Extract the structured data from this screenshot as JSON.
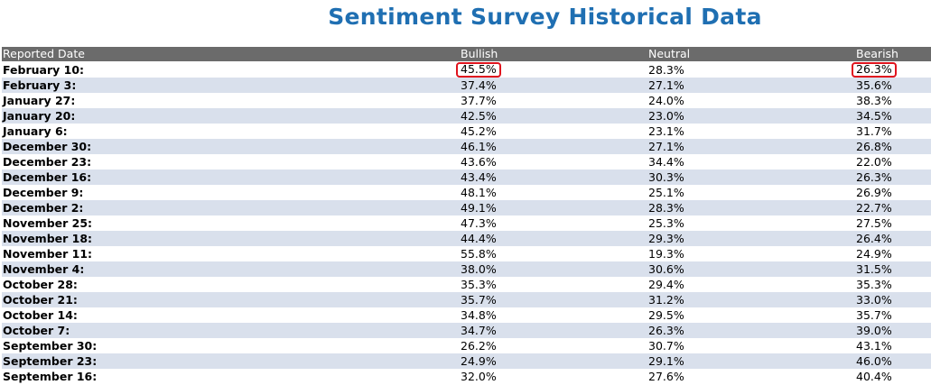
{
  "title": "Sentiment Survey Historical Data",
  "headers": [
    "Reported Date",
    "Bullish",
    "Neutral",
    "Bearish"
  ],
  "highlight_color": "#e0141e",
  "header_color": "#6b6b6b",
  "stripe_color": "#d9e0ec",
  "title_color": "#1f6fb2",
  "rows": [
    {
      "date": "February 10:",
      "bullish": "45.5%",
      "neutral": "28.3%",
      "bearish": "26.3%",
      "highlight_bullish": true,
      "highlight_bearish": true
    },
    {
      "date": "February 3:",
      "bullish": "37.4%",
      "neutral": "27.1%",
      "bearish": "35.6%"
    },
    {
      "date": "January 27:",
      "bullish": "37.7%",
      "neutral": "24.0%",
      "bearish": "38.3%"
    },
    {
      "date": "January 20:",
      "bullish": "42.5%",
      "neutral": "23.0%",
      "bearish": "34.5%"
    },
    {
      "date": "January 6:",
      "bullish": "45.2%",
      "neutral": "23.1%",
      "bearish": "31.7%"
    },
    {
      "date": "December 30:",
      "bullish": "46.1%",
      "neutral": "27.1%",
      "bearish": "26.8%"
    },
    {
      "date": "December 23:",
      "bullish": "43.6%",
      "neutral": "34.4%",
      "bearish": "22.0%"
    },
    {
      "date": "December 16:",
      "bullish": "43.4%",
      "neutral": "30.3%",
      "bearish": "26.3%"
    },
    {
      "date": "December 9:",
      "bullish": "48.1%",
      "neutral": "25.1%",
      "bearish": "26.9%"
    },
    {
      "date": "December 2:",
      "bullish": "49.1%",
      "neutral": "28.3%",
      "bearish": "22.7%"
    },
    {
      "date": "November 25:",
      "bullish": "47.3%",
      "neutral": "25.3%",
      "bearish": "27.5%"
    },
    {
      "date": "November 18:",
      "bullish": "44.4%",
      "neutral": "29.3%",
      "bearish": "26.4%"
    },
    {
      "date": "November 11:",
      "bullish": "55.8%",
      "neutral": "19.3%",
      "bearish": "24.9%"
    },
    {
      "date": "November 4:",
      "bullish": "38.0%",
      "neutral": "30.6%",
      "bearish": "31.5%"
    },
    {
      "date": "October 28:",
      "bullish": "35.3%",
      "neutral": "29.4%",
      "bearish": "35.3%"
    },
    {
      "date": "October 21:",
      "bullish": "35.7%",
      "neutral": "31.2%",
      "bearish": "33.0%"
    },
    {
      "date": "October 14:",
      "bullish": "34.8%",
      "neutral": "29.5%",
      "bearish": "35.7%"
    },
    {
      "date": "October 7:",
      "bullish": "34.7%",
      "neutral": "26.3%",
      "bearish": "39.0%"
    },
    {
      "date": "September 30:",
      "bullish": "26.2%",
      "neutral": "30.7%",
      "bearish": "43.1%"
    },
    {
      "date": "September 23:",
      "bullish": "24.9%",
      "neutral": "29.1%",
      "bearish": "46.0%"
    },
    {
      "date": "September 16:",
      "bullish": "32.0%",
      "neutral": "27.6%",
      "bearish": "40.4%"
    }
  ]
}
